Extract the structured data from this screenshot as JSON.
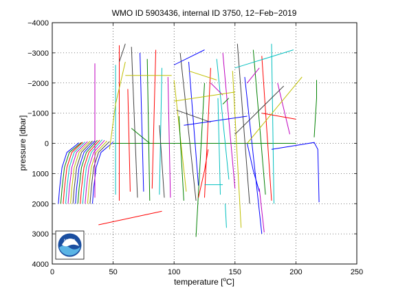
{
  "chart_data": {
    "type": "line",
    "title": "WMO ID 5903436, internal ID 3750, 12−Feb−2019",
    "xlabel": "temperature [°C]",
    "xlabel_main": "temperature [",
    "xlabel_unit_sup": "o",
    "xlabel_unit_end": "C]",
    "ylabel": "pressure [dbar]",
    "xlim": [
      0,
      250
    ],
    "ylim": [
      -4000,
      4000
    ],
    "y_reversed": true,
    "grid": true,
    "grid_style": "dotted",
    "x_ticks": [
      "0",
      "50",
      "100",
      "150",
      "200",
      "250"
    ],
    "x_tick_values": [
      0,
      50,
      100,
      150,
      200,
      250
    ],
    "y_ticks": [
      "−4000",
      "−3000",
      "−2000",
      "−1000",
      "0",
      "1000",
      "2000",
      "3000",
      "4000"
    ],
    "y_tick_values": [
      -4000,
      -3000,
      -2000,
      -1000,
      0,
      1000,
      2000,
      3000,
      4000
    ],
    "logo": {
      "label": "NOAA",
      "name": "noaa-logo"
    },
    "colors": [
      "#0000ff",
      "#008000",
      "#ff0000",
      "#00bfbf",
      "#bf00bf",
      "#bfbf00",
      "#404040"
    ],
    "series": [
      {
        "x": [
          5,
          6,
          8,
          12,
          22
        ],
        "y": [
          2000,
          1500,
          800,
          300,
          -20
        ]
      },
      {
        "x": [
          7,
          8,
          10,
          14,
          24
        ],
        "y": [
          2000,
          1500,
          800,
          300,
          -30
        ]
      },
      {
        "x": [
          9,
          10,
          12,
          16,
          25
        ],
        "y": [
          2000,
          1500,
          800,
          300,
          -40
        ]
      },
      {
        "x": [
          11,
          12,
          14,
          18,
          27
        ],
        "y": [
          2000,
          1500,
          800,
          300,
          -50
        ]
      },
      {
        "x": [
          13,
          14,
          16,
          20,
          29
        ],
        "y": [
          2000,
          1500,
          800,
          300,
          -60
        ]
      },
      {
        "x": [
          15,
          16,
          18,
          22,
          31
        ],
        "y": [
          2000,
          1500,
          800,
          300,
          -70
        ]
      },
      {
        "x": [
          17,
          18,
          20,
          24,
          33
        ],
        "y": [
          2000,
          1500,
          800,
          300,
          -80
        ]
      },
      {
        "x": [
          19,
          20,
          22,
          26,
          35
        ],
        "y": [
          2000,
          1500,
          800,
          300,
          -90
        ]
      },
      {
        "x": [
          21,
          22,
          24,
          28,
          37
        ],
        "y": [
          2000,
          1500,
          800,
          300,
          -100
        ]
      },
      {
        "x": [
          23,
          24,
          26,
          30,
          39
        ],
        "y": [
          2000,
          1500,
          800,
          300,
          -110
        ]
      },
      {
        "x": [
          25,
          26,
          28,
          32,
          41
        ],
        "y": [
          2000,
          1500,
          800,
          300,
          -120
        ]
      },
      {
        "x": [
          27,
          28,
          30,
          34,
          43
        ],
        "y": [
          2000,
          1500,
          800,
          300,
          -100
        ]
      },
      {
        "x": [
          29,
          30,
          32,
          36,
          45
        ],
        "y": [
          2000,
          1500,
          800,
          300,
          -80
        ]
      },
      {
        "x": [
          31,
          32,
          34,
          38,
          47
        ],
        "y": [
          2000,
          1500,
          800,
          300,
          -60
        ]
      },
      {
        "x": [
          33,
          34,
          36,
          40,
          50
        ],
        "y": [
          2000,
          1500,
          800,
          300,
          -40
        ]
      },
      {
        "x": [
          50,
          200
        ],
        "y": [
          0,
          0
        ]
      },
      {
        "x": [
          55,
          55
        ],
        "y": [
          1900,
          -3250
        ]
      },
      {
        "x": [
          52,
          52
        ],
        "y": [
          1700,
          -2600
        ]
      },
      {
        "x": [
          35,
          35
        ],
        "y": [
          1800,
          -2650
        ]
      },
      {
        "x": [
          60,
          52,
          47
        ],
        "y": [
          -2700,
          -1300,
          200
        ]
      },
      {
        "x": [
          65,
          70
        ],
        "y": [
          -3200,
          1800
        ]
      },
      {
        "x": [
          72,
          75
        ],
        "y": [
          -3000,
          1600
        ]
      },
      {
        "x": [
          78,
          80
        ],
        "y": [
          -2800,
          1900
        ]
      },
      {
        "x": [
          85,
          82
        ],
        "y": [
          -3100,
          1500
        ]
      },
      {
        "x": [
          90,
          88
        ],
        "y": [
          -2500,
          1700
        ]
      },
      {
        "x": [
          95,
          97
        ],
        "y": [
          -2200,
          1800
        ]
      },
      {
        "x": [
          100,
          110
        ],
        "y": [
          -2100,
          1600
        ]
      },
      {
        "x": [
          105,
          118
        ],
        "y": [
          -3000,
          1900
        ]
      },
      {
        "x": [
          112,
          120
        ],
        "y": [
          -2700,
          1400
        ]
      },
      {
        "x": [
          125,
          118
        ],
        "y": [
          -2000,
          3100
        ]
      },
      {
        "x": [
          130,
          125
        ],
        "y": [
          -2500,
          1800
        ]
      },
      {
        "x": [
          135,
          145
        ],
        "y": [
          -2800,
          1200
        ]
      },
      {
        "x": [
          140,
          150
        ],
        "y": [
          -3000,
          1500
        ]
      },
      {
        "x": [
          148,
          155
        ],
        "y": [
          -2400,
          2800
        ]
      },
      {
        "x": [
          152,
          162
        ],
        "y": [
          -3300,
          2000
        ]
      },
      {
        "x": [
          158,
          172
        ],
        "y": [
          -2200,
          3000
        ]
      },
      {
        "x": [
          165,
          175
        ],
        "y": [
          -3100,
          1700
        ]
      },
      {
        "x": [
          172,
          180
        ],
        "y": [
          -2900,
          1900
        ]
      },
      {
        "x": [
          180,
          182
        ],
        "y": [
          -3300,
          2000
        ]
      },
      {
        "x": [
          185,
          195
        ],
        "y": [
          -2000,
          -300
        ]
      },
      {
        "x": [
          205,
          160
        ],
        "y": [
          -2200,
          0
        ]
      },
      {
        "x": [
          150,
          190
        ],
        "y": [
          -300,
          -1900
        ]
      },
      {
        "x": [
          180,
          215,
          218,
          219
        ],
        "y": [
          200,
          -30,
          200,
          1950
        ]
      },
      {
        "x": [
          215,
          217,
          217
        ],
        "y": [
          -200,
          -1500,
          -2100
        ]
      },
      {
        "x": [
          38,
          90
        ],
        "y": [
          2700,
          2250
        ]
      },
      {
        "x": [
          125,
          140
        ],
        "y": [
          1370,
          1370
        ]
      },
      {
        "x": [
          130,
          140
        ],
        "y": [
          -2000,
          -1600
        ]
      },
      {
        "x": [
          60,
          98
        ],
        "y": [
          -2250,
          -2250
        ]
      },
      {
        "x": [
          55,
          60
        ],
        "y": [
          -2700,
          -3300
        ]
      },
      {
        "x": [
          100,
          125
        ],
        "y": [
          -2600,
          -3100
        ]
      },
      {
        "x": [
          140,
          145
        ],
        "y": [
          -1300,
          -1500
        ]
      },
      {
        "x": [
          172,
          200
        ],
        "y": [
          -1000,
          -800
        ]
      },
      {
        "x": [
          150,
          198
        ],
        "y": [
          -2500,
          -3100
        ]
      },
      {
        "x": [
          160,
          170
        ],
        "y": [
          -2000,
          -2500
        ]
      },
      {
        "x": [
          100,
          150
        ],
        "y": [
          -1400,
          -1700
        ]
      },
      {
        "x": [
          102,
          130
        ],
        "y": [
          -1100,
          -700
        ]
      },
      {
        "x": [
          108,
          160
        ],
        "y": [
          -600,
          -900
        ]
      },
      {
        "x": [
          65,
          80
        ],
        "y": [
          -500,
          0
        ]
      },
      {
        "x": [
          120,
          125,
          128
        ],
        "y": [
          1800,
          900,
          200
        ]
      },
      {
        "x": [
          142,
          143
        ],
        "y": [
          2000,
          2800
        ]
      },
      {
        "x": [
          170,
          174
        ],
        "y": [
          1500,
          2950
        ]
      },
      {
        "x": [
          112,
          135
        ],
        "y": [
          -2400,
          -2100
        ]
      },
      {
        "x": [
          88,
          92
        ],
        "y": [
          -600,
          1800
        ]
      },
      {
        "x": [
          160,
          165,
          170
        ],
        "y": [
          0,
          900,
          1600
        ]
      },
      {
        "x": [
          104,
          108
        ],
        "y": [
          -900,
          1900
        ]
      },
      {
        "x": [
          62,
          64
        ],
        "y": [
          -1800,
          1600
        ]
      },
      {
        "x": [
          136,
          138
        ],
        "y": [
          -1500,
          1700
        ]
      }
    ]
  }
}
